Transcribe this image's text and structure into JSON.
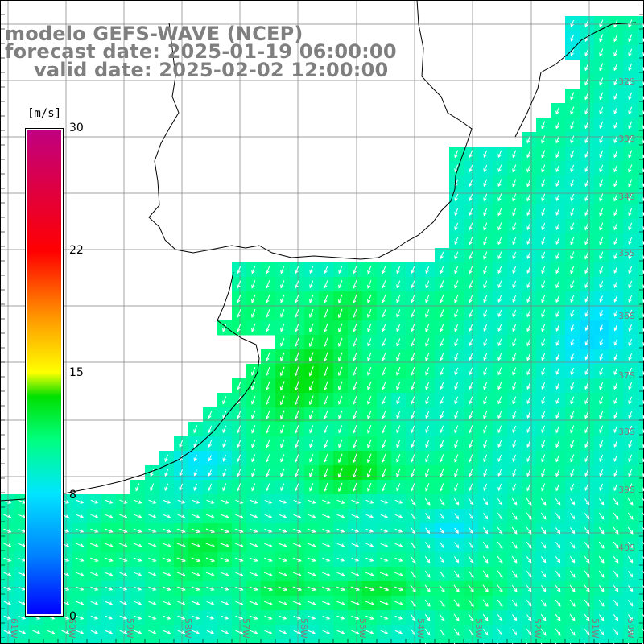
{
  "title": {
    "line1": "modelo GEFS-WAVE (NCEP)",
    "line2": "forecast date: 2025-01-19 06:00:00",
    "line3": "valid date: 2025-02-02 12:00:00"
  },
  "colorbar": {
    "unit": "[m/s]",
    "ticks": [
      "30",
      "22",
      "15",
      "8",
      "0"
    ],
    "stops": [
      "#0000ff",
      "#0080ff",
      "#00e5ff",
      "#00ff80",
      "#00e000",
      "#ffff00",
      "#ff9000",
      "#ff0000",
      "#c00080"
    ]
  },
  "graticule": {
    "lat_labels": [
      "32S",
      "33S",
      "34S",
      "35S",
      "36S",
      "37S",
      "38S",
      "39S",
      "40S"
    ],
    "lon_labels": [
      "61W",
      "60W",
      "59W",
      "58W",
      "57W",
      "56W",
      "55W",
      "54W",
      "53W",
      "52W",
      "51W",
      "50W"
    ]
  },
  "palette": {
    "land": "#ffffff",
    "grid": "#808080",
    "coast": "#000000",
    "arrow": "#ffffff",
    "title": "#7f7f7f"
  },
  "field": {
    "variable": "wind speed",
    "units": "m/s",
    "vmin": 0,
    "vmax": 30,
    "rows": [
      "zzzzzzzzzzzzzzzzzzzzzzzzzzzzzzzzzzzzzzzzzzzzzzzzzzzzzzzzzzzzzzzzzzzzzzzzzzzzzzzzzzzzzzzzzzzzzzzz",
      "zzzzzzzzzzzzzzzzzzzzzzzzzzzzzzzzzzzzzzzzzzzzzzzzzzzzzzzzzzzzzzzzzzzzzzzzzzzzzzzzzzzzzzzzzzzzzzzz",
      "zzzzzzzzzzzzzzzzzzzzzzzzzzzzzzzzzzzzzzzzzzzzzzzzzzzzzzzzzzzzzzzzzzzzzzzzzzzzzzzzzzzzzzzzzzzzzzzz",
      "zzzzzzzzzzzzzzzzzzzzzzzzzzzzzzzzzzzzzzzzzzzzzzzzzzzzzzzzzzzzzzzzzzzzzzzzzzzzzzzzzzzzzzzzzzzzzzzz",
      "zzzzzzzzzzzzzzzzzzzzzzzzzzzzzzzzzzzzzzzzzzzzzzzzzzzzzzzzzzzzzzzzzzzzzzzzzzzzzzzzzzzzzzzzzzzzzzzz"
    ]
  }
}
